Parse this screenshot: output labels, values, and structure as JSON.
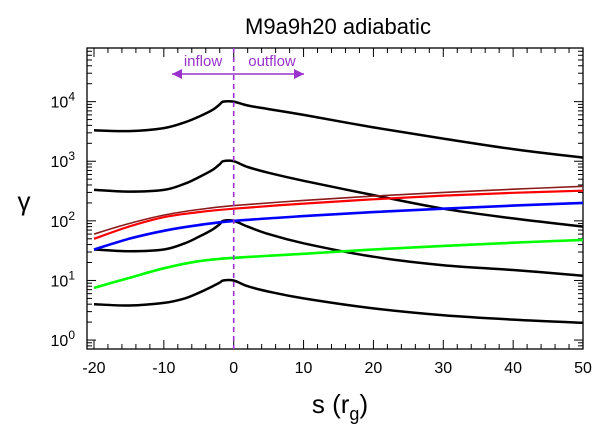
{
  "chart_data": {
    "type": "line",
    "title": "M9a9h20   adiabatic",
    "xlabel": "s (r",
    "xlabel_sub": "g",
    "xlabel_close": ")",
    "ylabel": "γ",
    "xlim": [
      -21,
      50
    ],
    "ylim_log10": [
      -0.15,
      4.9
    ],
    "yscale": "log",
    "x_ticks": [
      -20,
      -10,
      0,
      10,
      20,
      30,
      40,
      50
    ],
    "y_ticks": [
      {
        "base": "10",
        "exp": "0",
        "value": 1
      },
      {
        "base": "10",
        "exp": "1",
        "value": 10
      },
      {
        "base": "10",
        "exp": "2",
        "value": 100
      },
      {
        "base": "10",
        "exp": "3",
        "value": 1000
      },
      {
        "base": "10",
        "exp": "4",
        "value": 10000
      }
    ],
    "annotations": {
      "inflow": "inflow",
      "outflow": "outflow",
      "divider_x": 0
    },
    "series": [
      {
        "color": "#000000",
        "width": 2.5,
        "points": [
          [
            -20,
            3300
          ],
          [
            -15,
            3200
          ],
          [
            -10,
            3600
          ],
          [
            -7,
            4500
          ],
          [
            -5,
            5600
          ],
          [
            -3,
            7300
          ],
          [
            -2,
            9000
          ],
          [
            -1.5,
            10000
          ],
          [
            0,
            10000
          ],
          [
            2,
            8600
          ],
          [
            5,
            7500
          ],
          [
            10,
            6000
          ],
          [
            20,
            3700
          ],
          [
            30,
            2400
          ],
          [
            40,
            1600
          ],
          [
            50,
            1150
          ]
        ]
      },
      {
        "color": "#000000",
        "width": 2.5,
        "points": [
          [
            -20,
            330
          ],
          [
            -15,
            310
          ],
          [
            -10,
            330
          ],
          [
            -7,
            420
          ],
          [
            -5,
            540
          ],
          [
            -3,
            720
          ],
          [
            -2,
            890
          ],
          [
            -1.5,
            1000
          ],
          [
            0,
            1000
          ],
          [
            2,
            800
          ],
          [
            5,
            640
          ],
          [
            10,
            470
          ],
          [
            20,
            270
          ],
          [
            30,
            160
          ],
          [
            40,
            110
          ],
          [
            50,
            80
          ]
        ]
      },
      {
        "color": "#000000",
        "width": 2.5,
        "points": [
          [
            -20,
            33
          ],
          [
            -15,
            31
          ],
          [
            -10,
            33
          ],
          [
            -7,
            42
          ],
          [
            -5,
            54
          ],
          [
            -3,
            72
          ],
          [
            -2,
            88
          ],
          [
            -1.5,
            100
          ],
          [
            0,
            100
          ],
          [
            2,
            80
          ],
          [
            5,
            60
          ],
          [
            10,
            42
          ],
          [
            20,
            25
          ],
          [
            30,
            18
          ],
          [
            40,
            15
          ],
          [
            50,
            12
          ]
        ]
      },
      {
        "color": "#000000",
        "width": 2.5,
        "points": [
          [
            -20,
            4.0
          ],
          [
            -15,
            3.8
          ],
          [
            -10,
            4.2
          ],
          [
            -7,
            5.0
          ],
          [
            -5,
            6.2
          ],
          [
            -3,
            8.0
          ],
          [
            -2,
            9.2
          ],
          [
            -1.5,
            10
          ],
          [
            0,
            10
          ],
          [
            2,
            8.0
          ],
          [
            5,
            6.5
          ],
          [
            10,
            5.0
          ],
          [
            20,
            3.4
          ],
          [
            30,
            2.6
          ],
          [
            40,
            2.2
          ],
          [
            50,
            1.95
          ]
        ]
      },
      {
        "color": "#8b1a1a",
        "width": 1.6,
        "points": [
          [
            -20,
            60
          ],
          [
            -15,
            90
          ],
          [
            -10,
            125
          ],
          [
            -5,
            155
          ],
          [
            0,
            180
          ],
          [
            10,
            220
          ],
          [
            20,
            260
          ],
          [
            30,
            300
          ],
          [
            40,
            340
          ],
          [
            50,
            380
          ]
        ]
      },
      {
        "color": "#ff0000",
        "width": 2.2,
        "points": [
          [
            -20,
            50
          ],
          [
            -15,
            80
          ],
          [
            -10,
            115
          ],
          [
            -5,
            140
          ],
          [
            0,
            160
          ],
          [
            10,
            195
          ],
          [
            20,
            230
          ],
          [
            30,
            265
          ],
          [
            40,
            295
          ],
          [
            50,
            320
          ]
        ]
      },
      {
        "color": "#0000ff",
        "width": 2.6,
        "points": [
          [
            -20,
            33
          ],
          [
            -15,
            50
          ],
          [
            -10,
            68
          ],
          [
            -5,
            85
          ],
          [
            0,
            100
          ],
          [
            10,
            120
          ],
          [
            20,
            140
          ],
          [
            30,
            160
          ],
          [
            40,
            180
          ],
          [
            50,
            200
          ]
        ]
      },
      {
        "color": "#00ff00",
        "width": 2.6,
        "points": [
          [
            -20,
            7.5
          ],
          [
            -15,
            11
          ],
          [
            -10,
            16
          ],
          [
            -5,
            21
          ],
          [
            0,
            24
          ],
          [
            10,
            28
          ],
          [
            20,
            33
          ],
          [
            30,
            38
          ],
          [
            40,
            43
          ],
          [
            50,
            48
          ]
        ]
      }
    ],
    "colors": {
      "annotation": "#9a32cd",
      "frame": "#000000"
    }
  }
}
